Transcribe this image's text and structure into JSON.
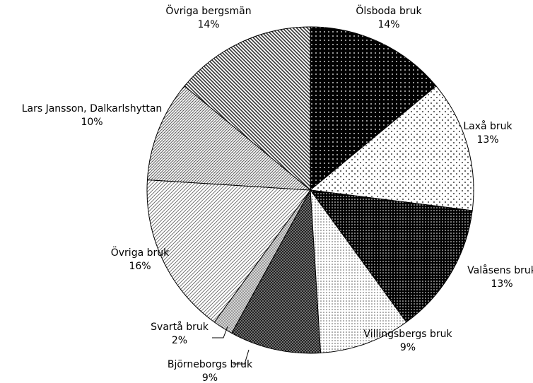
{
  "chart_data": {
    "type": "pie",
    "categories": [
      "Ölsboda bruk",
      "Laxå bruk",
      "Valåsens bruk",
      "Villingsbergs bruk",
      "Björneborgs bruk",
      "Svartå bruk",
      "Övriga bruk",
      "Lars Jansson, Dalkarlshyttan",
      "Övriga bergsmän"
    ],
    "values": [
      14,
      13,
      13,
      9,
      9,
      2,
      16,
      10,
      14
    ],
    "value_labels": [
      "14%",
      "13%",
      "13%",
      "9%",
      "9%",
      "2%",
      "16%",
      "10%",
      "14%"
    ]
  }
}
